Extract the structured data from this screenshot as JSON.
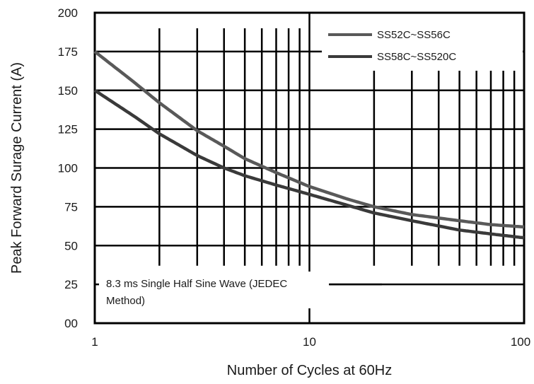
{
  "chart_data": {
    "type": "line",
    "xlabel": "Number of Cycles at 60Hz",
    "ylabel": "Peak Forward Surage Current (A)",
    "x_scale": "log",
    "xlim": [
      1,
      100
    ],
    "ylim": [
      0,
      200
    ],
    "x_ticks": [
      1,
      10,
      100
    ],
    "x_tick_labels": [
      "1",
      "10",
      "100"
    ],
    "y_ticks": [
      0,
      25,
      50,
      75,
      100,
      125,
      150,
      175,
      200
    ],
    "y_tick_labels": [
      "00",
      "25",
      "50",
      "75",
      "100",
      "125",
      "150",
      "175",
      "200"
    ],
    "grid": true,
    "legend_position": "top-right",
    "annotation": [
      "8.3 ms Single Half Sine Wave (JEDEC",
      "Method)"
    ],
    "series": [
      {
        "name": "SS52C~SS56C",
        "color": "#595959",
        "x": [
          1,
          1.5,
          2,
          3,
          4,
          5,
          7,
          10,
          15,
          20,
          30,
          50,
          70,
          100
        ],
        "y": [
          175,
          156,
          142,
          124,
          114,
          106,
          97,
          88,
          80,
          75,
          70,
          66,
          63.5,
          62
        ]
      },
      {
        "name": "SS58C~SS520C",
        "color": "#3a3a3a",
        "x": [
          1,
          1.5,
          2,
          3,
          4,
          5,
          7,
          10,
          15,
          20,
          30,
          50,
          70,
          100
        ],
        "y": [
          150,
          134,
          122,
          108,
          100,
          95,
          89,
          83,
          76,
          71,
          66,
          60,
          57.5,
          55
        ]
      }
    ]
  }
}
